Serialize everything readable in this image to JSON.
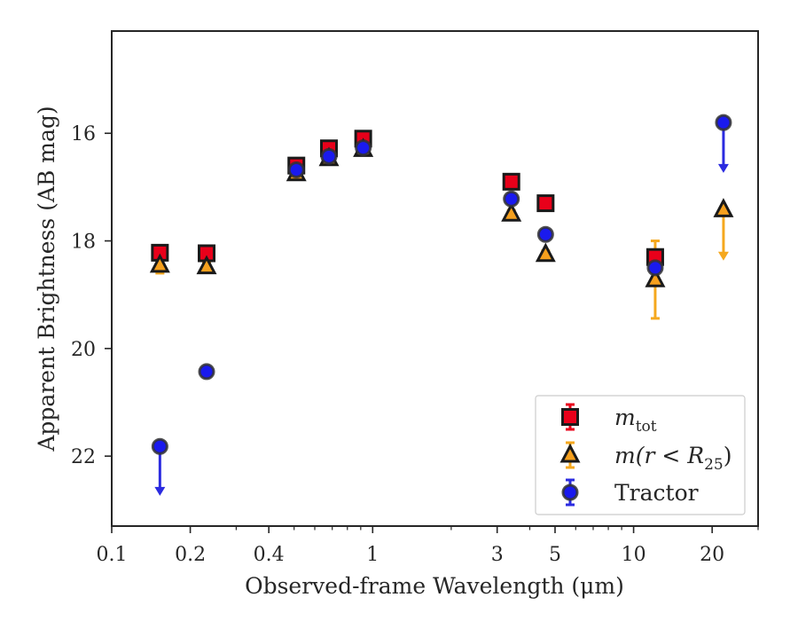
{
  "chart_data": {
    "type": "scatter",
    "xscale": "log",
    "xlim": [
      0.1,
      30
    ],
    "ylim": [
      23.3,
      14.1
    ],
    "y_inverted": true,
    "xlabel": "Observed-frame Wavelength (μm)",
    "ylabel": "Apparent Brightness (AB mag)",
    "x_ticks": [
      {
        "value": 0.1,
        "label": "0.1"
      },
      {
        "value": 0.2,
        "label": "0.2"
      },
      {
        "value": 0.4,
        "label": "0.4"
      },
      {
        "value": 1,
        "label": "1"
      },
      {
        "value": 3,
        "label": "3"
      },
      {
        "value": 5,
        "label": "5"
      },
      {
        "value": 10,
        "label": "10"
      },
      {
        "value": 20,
        "label": "20"
      }
    ],
    "x_minor_ticks": [
      0.3,
      0.5,
      0.6,
      0.7,
      0.8,
      0.9,
      2,
      4,
      6,
      7,
      8,
      9,
      30
    ],
    "y_ticks": [
      {
        "value": 16,
        "label": "16"
      },
      {
        "value": 18,
        "label": "18"
      },
      {
        "value": 20,
        "label": "20"
      },
      {
        "value": 22,
        "label": "22"
      }
    ],
    "legend_position": "lower-right",
    "series": [
      {
        "key": "mtot",
        "legend_main": "m",
        "legend_sub": "tot",
        "marker": "square",
        "face_color": "#e8001a",
        "edge_color": "#1a1a1a",
        "err_color": "#e8001a",
        "points": [
          {
            "x": 0.153,
            "y": 18.22
          },
          {
            "x": 0.231,
            "y": 18.23
          },
          {
            "x": 0.51,
            "y": 16.6
          },
          {
            "x": 0.68,
            "y": 16.28
          },
          {
            "x": 0.92,
            "y": 16.1
          },
          {
            "x": 3.4,
            "y": 16.9
          },
          {
            "x": 4.6,
            "y": 17.3
          },
          {
            "x": 12.1,
            "y": 18.3,
            "yerr": 0.1
          }
        ]
      },
      {
        "key": "mr25",
        "legend_main": "m(r < R",
        "legend_sub": "25",
        "legend_tail": ")",
        "marker": "triangle",
        "face_color": "#f5a01e",
        "edge_color": "#1a1a1a",
        "err_color": "#f5a81e",
        "points": [
          {
            "x": 0.153,
            "y": 18.45,
            "yerr": 0.15
          },
          {
            "x": 0.231,
            "y": 18.48
          },
          {
            "x": 0.51,
            "y": 16.75
          },
          {
            "x": 0.68,
            "y": 16.47
          },
          {
            "x": 0.92,
            "y": 16.3
          },
          {
            "x": 3.4,
            "y": 17.5
          },
          {
            "x": 4.6,
            "y": 18.25
          },
          {
            "x": 12.1,
            "y": 18.72,
            "yerr_low": 0.72,
            "yerr_high": 0.72
          },
          {
            "x": 22.1,
            "y": 17.42,
            "upper_limit": true,
            "arrow_to": 18.35
          }
        ]
      },
      {
        "key": "tractor",
        "legend_main": "Tractor",
        "marker": "circle",
        "face_color": "#1a1aee",
        "edge_color": "#333333",
        "err_color": "#2b2be0",
        "points": [
          {
            "x": 0.153,
            "y": 21.82,
            "upper_limit": true,
            "arrow_to": 22.72
          },
          {
            "x": 0.231,
            "y": 20.43
          },
          {
            "x": 0.51,
            "y": 16.68
          },
          {
            "x": 0.68,
            "y": 16.43
          },
          {
            "x": 0.92,
            "y": 16.27
          },
          {
            "x": 3.4,
            "y": 17.22
          },
          {
            "x": 4.6,
            "y": 17.88
          },
          {
            "x": 12.1,
            "y": 18.5
          },
          {
            "x": 22.1,
            "y": 15.8,
            "upper_limit": true,
            "arrow_to": 16.72
          }
        ]
      }
    ]
  }
}
